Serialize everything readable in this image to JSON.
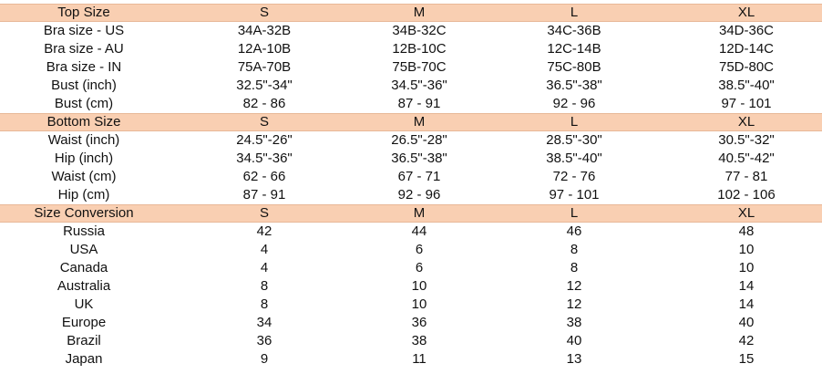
{
  "sections": [
    {
      "title": "Top Size",
      "headers": [
        "S",
        "M",
        "L",
        "XL"
      ],
      "rows": [
        [
          "Bra size - US",
          "34A-32B",
          "34B-32C",
          "34C-36B",
          "34D-36C"
        ],
        [
          "Bra size - AU",
          "12A-10B",
          "12B-10C",
          "12C-14B",
          "12D-14C"
        ],
        [
          "Bra size - IN",
          "75A-70B",
          "75B-70C",
          "75C-80B",
          "75D-80C"
        ],
        [
          "Bust (inch)",
          "32.5\"-34\"",
          "34.5\"-36\"",
          "36.5\"-38\"",
          "38.5\"-40\""
        ],
        [
          "Bust (cm)",
          "82 - 86",
          "87 - 91",
          "92 - 96",
          "97 - 101"
        ]
      ]
    },
    {
      "title": "Bottom Size",
      "headers": [
        "S",
        "M",
        "L",
        "XL"
      ],
      "rows": [
        [
          "Waist (inch)",
          "24.5\"-26\"",
          "26.5\"-28\"",
          "28.5\"-30\"",
          "30.5\"-32\""
        ],
        [
          "Hip (inch)",
          "34.5\"-36\"",
          "36.5\"-38\"",
          "38.5\"-40\"",
          "40.5\"-42\""
        ],
        [
          "Waist (cm)",
          "62 - 66",
          "67 - 71",
          "72 - 76",
          "77 - 81"
        ],
        [
          "Hip (cm)",
          "87 - 91",
          "92 - 96",
          "97 - 101",
          "102 - 106"
        ]
      ]
    },
    {
      "title": "Size Conversion",
      "headers": [
        "S",
        "M",
        "L",
        "XL"
      ],
      "rows": [
        [
          "Russia",
          "42",
          "44",
          "46",
          "48"
        ],
        [
          "USA",
          "4",
          "6",
          "8",
          "10"
        ],
        [
          "Canada",
          "4",
          "6",
          "8",
          "10"
        ],
        [
          "Australia",
          "8",
          "10",
          "12",
          "14"
        ],
        [
          "UK",
          "8",
          "10",
          "12",
          "14"
        ],
        [
          "Europe",
          "34",
          "36",
          "38",
          "40"
        ],
        [
          "Brazil",
          "36",
          "38",
          "40",
          "42"
        ],
        [
          "Japan",
          "9",
          "11",
          "13",
          "15"
        ]
      ]
    }
  ]
}
